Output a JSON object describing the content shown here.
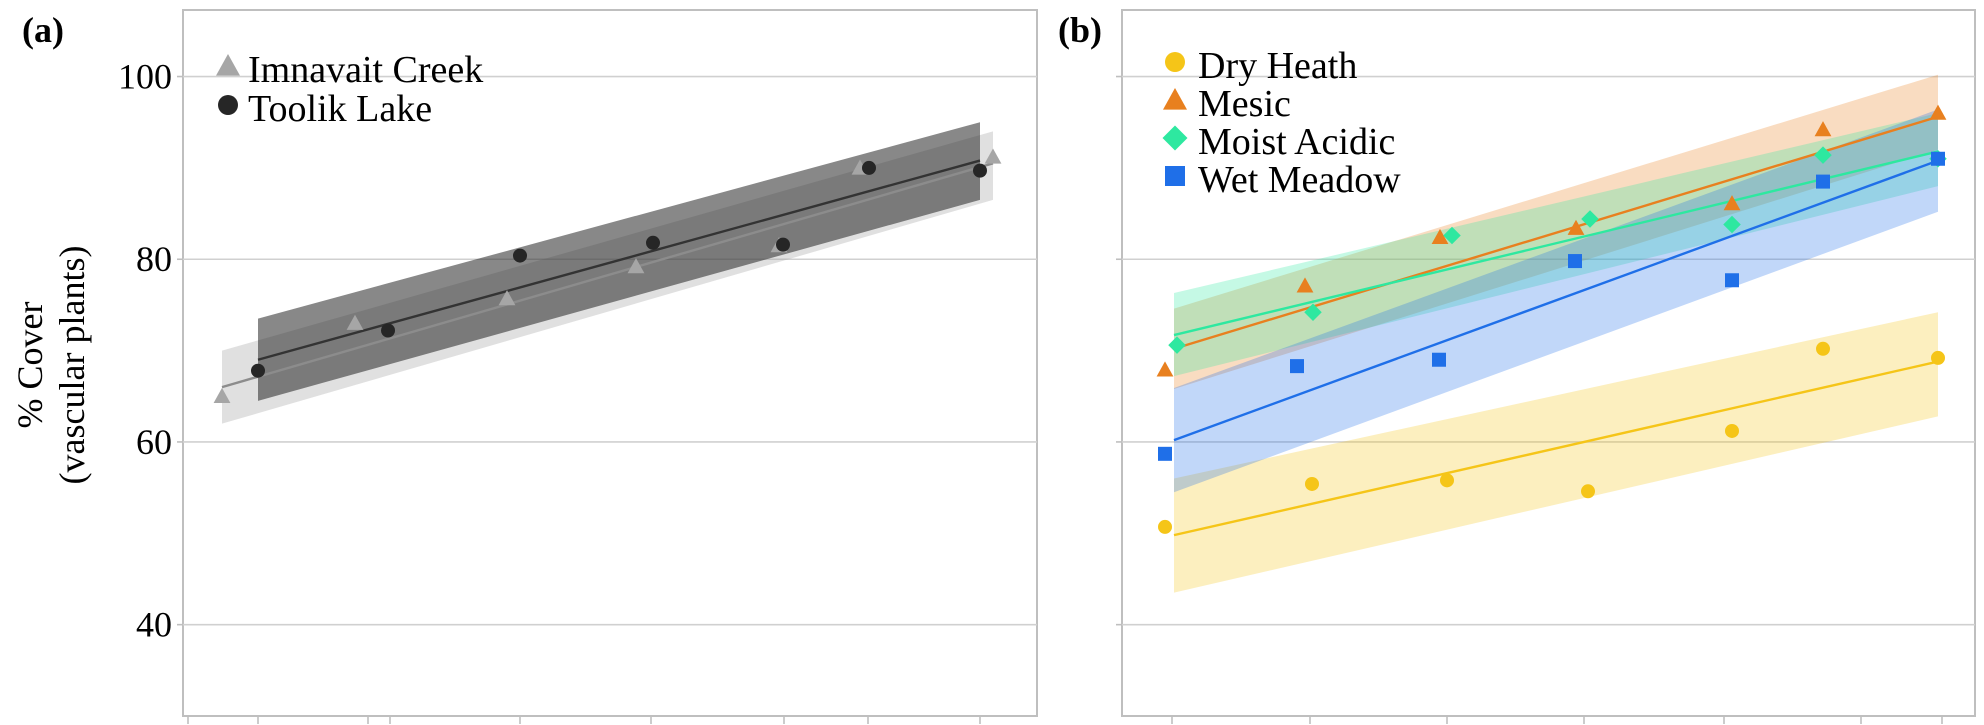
{
  "chart_data": [
    {
      "type": "scatter",
      "panel_label": "(a)",
      "ylabel_lines": [
        "% Cover",
        "(vascular plants)"
      ],
      "ylim": [
        30,
        104
      ],
      "yticks": [
        "40",
        "60",
        "80",
        "100"
      ],
      "grid": true,
      "legend_position": "top-left",
      "colors": {
        "Imnavait Creek": "#a6a6a6",
        "Toolik Lake": "#262626"
      },
      "series": [
        {
          "name": "Imnavait Creek",
          "marker": "triangle",
          "x": [
            1,
            2,
            3,
            4,
            5,
            6,
            7
          ],
          "values": [
            65,
            73,
            75.7,
            79.2,
            81.5,
            90,
            91.2
          ],
          "fit": [
            66,
            90.5
          ],
          "band_low": [
            62,
            86.5
          ],
          "band_high": [
            70,
            94
          ]
        },
        {
          "name": "Toolik Lake",
          "marker": "circle",
          "x": [
            1,
            2,
            3,
            4,
            5,
            6,
            7
          ],
          "values": [
            67.8,
            72.2,
            80.4,
            81.8,
            81.6,
            90,
            89.7
          ],
          "fit": [
            69,
            90.8
          ],
          "band_low": [
            64.5,
            86.5
          ],
          "band_high": [
            73.5,
            95
          ]
        }
      ]
    },
    {
      "type": "scatter",
      "panel_label": "(b)",
      "ylim": [
        30,
        104
      ],
      "grid": true,
      "legend_position": "top-left",
      "colors": {
        "Dry Heath": "#f5c518",
        "Mesic": "#e8801f",
        "Moist Acidic": "#2ee8a0",
        "Wet Meadow": "#1f6fe8"
      },
      "series": [
        {
          "name": "Dry Heath",
          "marker": "circle",
          "x": [
            1,
            2,
            3,
            4,
            5,
            6,
            7
          ],
          "values": [
            50.7,
            55.4,
            55.8,
            54.6,
            61.2,
            70.2,
            69.2
          ],
          "fit": [
            49.8,
            68.8
          ],
          "band_low": [
            43.5,
            62.8
          ],
          "band_high": [
            56,
            74.2
          ]
        },
        {
          "name": "Mesic",
          "marker": "triangle",
          "x": [
            1,
            2,
            3,
            4,
            5,
            6,
            7
          ],
          "values": [
            67.9,
            77.1,
            82.4,
            83.4,
            86.1,
            94.2,
            96
          ],
          "fit": [
            70.2,
            95.6
          ],
          "band_low": [
            65.8,
            92
          ],
          "band_high": [
            74.6,
            100.2
          ]
        },
        {
          "name": "Moist Acidic",
          "marker": "diamond",
          "x": [
            1,
            2,
            3,
            4,
            5,
            6,
            7
          ],
          "values": [
            70.6,
            74.2,
            82.6,
            84.4,
            83.8,
            91.4,
            91
          ],
          "fit": [
            71.7,
            91.8
          ],
          "band_low": [
            67.2,
            88
          ],
          "band_high": [
            76.3,
            96
          ]
        },
        {
          "name": "Wet Meadow",
          "marker": "square",
          "x": [
            1,
            2,
            3,
            4,
            5,
            6,
            7
          ],
          "values": [
            58.7,
            68.3,
            69,
            79.8,
            77.7,
            88.5,
            91
          ],
          "fit": [
            60.2,
            90.8
          ],
          "band_low": [
            54.5,
            85.2
          ],
          "band_high": [
            65.9,
            96.4
          ]
        }
      ]
    }
  ]
}
